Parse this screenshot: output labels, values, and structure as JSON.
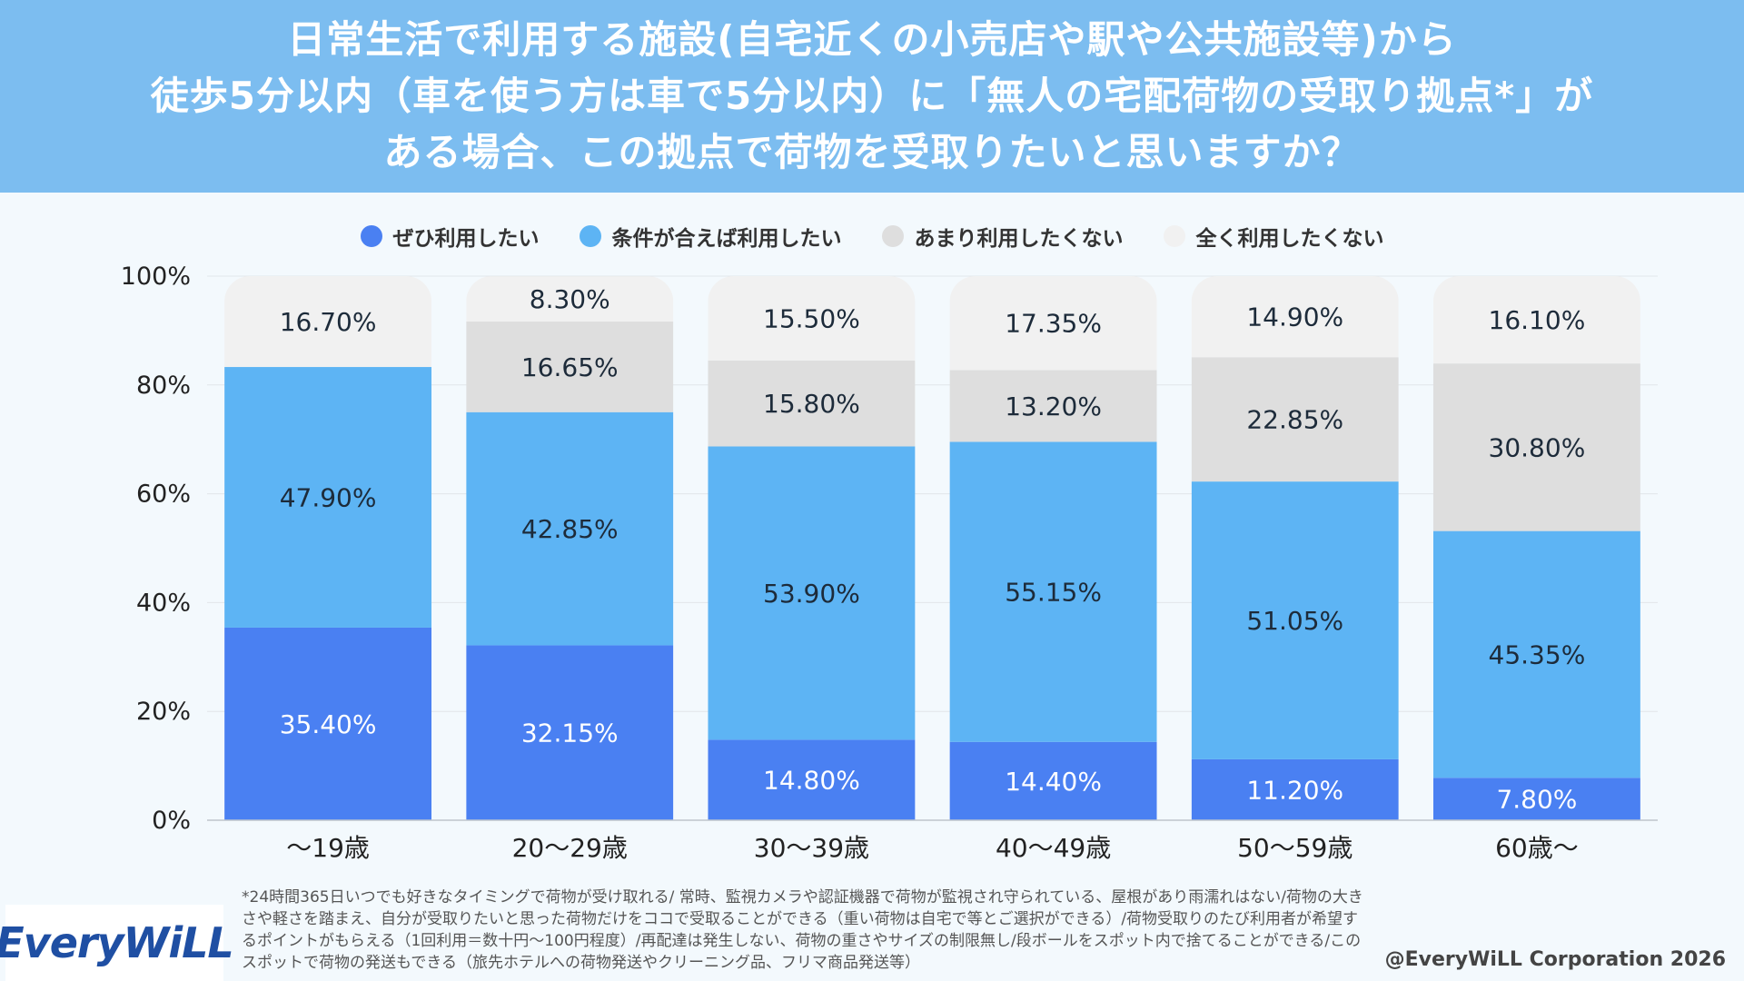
{
  "header": {
    "title_lines": [
      "日常生活で利用する施設(自宅近くの小売店や駅や公共施設等)から",
      "徒歩5分以内（車を使う方は車で5分以内）に「無人の宅配荷物の受取り拠点*」が",
      "ある場合、この拠点で荷物を受取りたいと思いますか？"
    ]
  },
  "legend": [
    {
      "label": "ぜひ利用したい",
      "color": "#4a80f2"
    },
    {
      "label": "条件が合えば利用したい",
      "color": "#5db4f4"
    },
    {
      "label": "あまり利用したくない",
      "color": "#dedede"
    },
    {
      "label": "全く利用したくない",
      "color": "#f1f1f1"
    }
  ],
  "chart_data": {
    "type": "bar",
    "stacked": true,
    "categories": [
      "～19歳",
      "20～29歳",
      "30～39歳",
      "40～49歳",
      "50～59歳",
      "60歳～"
    ],
    "ylim": [
      0,
      100
    ],
    "yticks": [
      "0%",
      "20%",
      "40%",
      "60%",
      "80%",
      "100%"
    ],
    "series": [
      {
        "name": "ぜひ利用したい",
        "color": "#4a80f2",
        "text_color": "#ffffff",
        "values": [
          35.4,
          32.15,
          14.8,
          14.4,
          11.2,
          7.8
        ],
        "labels": [
          "35.40%",
          "32.15%",
          "14.80%",
          "14.40%",
          "11.20%",
          "7.80%"
        ]
      },
      {
        "name": "条件が合えば利用したい",
        "color": "#5db4f4",
        "text_color": "#1d2b3a",
        "values": [
          47.9,
          42.85,
          53.9,
          55.15,
          51.05,
          45.35
        ],
        "labels": [
          "47.90%",
          "42.85%",
          "53.90%",
          "55.15%",
          "51.05%",
          "45.35%"
        ]
      },
      {
        "name": "あまり利用したくない",
        "color": "#dedede",
        "text_color": "#1d2b3a",
        "values": [
          0,
          16.65,
          15.8,
          13.2,
          22.85,
          30.8
        ],
        "labels": [
          "",
          "16.65%",
          "15.80%",
          "13.20%",
          "22.85%",
          "30.80%"
        ]
      },
      {
        "name": "全く利用したくない",
        "color": "#f1f1f1",
        "text_color": "#1d2b3a",
        "values": [
          16.7,
          8.3,
          15.5,
          17.35,
          14.9,
          16.1
        ],
        "labels": [
          "16.70%",
          "8.30%",
          "15.50%",
          "17.35%",
          "14.90%",
          "16.10%"
        ]
      }
    ]
  },
  "footnote": [
    "*24時間365日いつでも好きなタイミングで荷物が受け取れる/ 常時、監視カメラや認証機器で荷物が監視され守られている、屋根があり雨濡れはない/荷物の大き",
    "さや軽さを踏まえ、自分が受取りたいと思った荷物だけをココで受取ることができる（重い荷物は自宅で等とご選択ができる）/荷物受取りのたび利用者が希望す",
    "るポイントがもらえる（1回利用＝数十円～100円程度）/再配達は発生しない、荷物の重さやサイズの制限無し/段ボールをスポット内で捨てることができる/この",
    "スポットで荷物の発送もできる（旅先ホテルへの荷物発送やクリーニング品、フリマ商品発送等）"
  ],
  "logo": {
    "text": "EveryWiLL"
  },
  "copyright": "@EveryWiLL Corporation 2026"
}
